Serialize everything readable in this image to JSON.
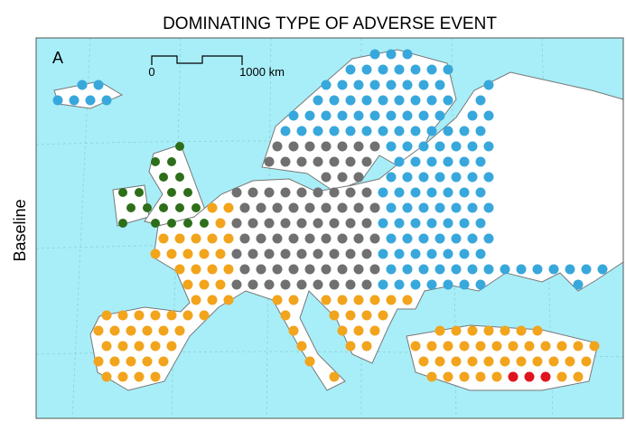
{
  "title": "DOMINATING TYPE OF ADVERSE EVENT",
  "panel_label": "A",
  "scale_bar": {
    "start": "0",
    "end": "1000 km"
  },
  "row_label": "Baseline"
}
